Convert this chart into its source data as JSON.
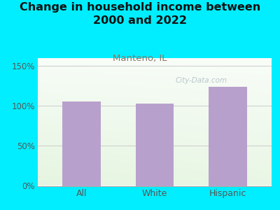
{
  "title": "Change in household income between\n2000 and 2022",
  "subtitle": "Manteno, IL",
  "categories": [
    "All",
    "White",
    "Hispanic"
  ],
  "values": [
    105,
    103,
    124
  ],
  "bar_color": "#b8a0cc",
  "title_fontsize": 11.5,
  "subtitle_fontsize": 9.5,
  "subtitle_color": "#887766",
  "background_color": "#00eeff",
  "plot_bg_color_topleft": "#e8f5e0",
  "plot_bg_color_topright": "#f5faf0",
  "plot_bg_color_bottom": "#ffffff",
  "yticks": [
    0,
    50,
    100,
    150
  ],
  "ytick_labels": [
    "0%",
    "50%",
    "100%",
    "150%"
  ],
  "ylim": [
    0,
    160
  ],
  "watermark": "City-Data.com",
  "watermark_color": "#b0bec5",
  "tick_color": "#555555",
  "grid_color": "#cccccc"
}
